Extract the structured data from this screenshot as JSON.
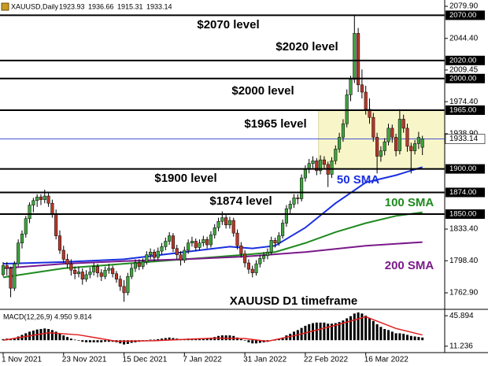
{
  "chart_data": {
    "type": "candlestick",
    "header": "XAUUSD,Daily",
    "up_color": "#3fa33f",
    "down_color": "#b5382b",
    "xlim": [
      -0.83,
      116.9
    ],
    "xticks": [
      {
        "value": 0,
        "label": "1 Nov 2021"
      },
      {
        "value": 16,
        "label": "23 Nov 2021"
      },
      {
        "value": 32,
        "label": "15 Dec 2021"
      },
      {
        "value": 48,
        "label": "7 Jan 2022"
      },
      {
        "value": 64,
        "label": "31 Jan 2022"
      },
      {
        "value": 80,
        "label": "22 Feb 2022"
      },
      {
        "value": 96,
        "label": "16 Mar 2022"
      }
    ],
    "ylim": [
      1745.5,
      2086.9
    ],
    "yticks": [
      {
        "value": 2079.9,
        "label": "2079.90"
      },
      {
        "value": 2044.4,
        "label": "2044.40"
      },
      {
        "value": 2009.45,
        "label": "2009.45"
      },
      {
        "value": 1974.4,
        "label": "1974.40"
      },
      {
        "value": 1938.9,
        "label": "1938.90"
      },
      {
        "value": 1833.4,
        "label": "1833.40"
      },
      {
        "value": 1798.4,
        "label": "1798.40"
      },
      {
        "value": 1762.9,
        "label": "1762.90"
      }
    ],
    "candles": [
      [
        1783,
        1797,
        1781,
        1793
      ],
      [
        1793,
        1797,
        1782,
        1790
      ],
      [
        1790,
        1792,
        1758,
        1768
      ],
      [
        1768,
        1798,
        1765,
        1795
      ],
      [
        1795,
        1822,
        1792,
        1818
      ],
      [
        1818,
        1832,
        1812,
        1828
      ],
      [
        1828,
        1848,
        1824,
        1845
      ],
      [
        1845,
        1863,
        1840,
        1860
      ],
      [
        1860,
        1868,
        1852,
        1865
      ],
      [
        1865,
        1872,
        1858,
        1869
      ],
      [
        1869,
        1872,
        1860,
        1866
      ],
      [
        1866,
        1877,
        1862,
        1870
      ],
      [
        1870,
        1873,
        1858,
        1862
      ],
      [
        1862,
        1866,
        1846,
        1850
      ],
      [
        1850,
        1855,
        1822,
        1826
      ],
      [
        1826,
        1832,
        1806,
        1810
      ],
      [
        1810,
        1815,
        1796,
        1800
      ],
      [
        1800,
        1806,
        1790,
        1795
      ],
      [
        1795,
        1800,
        1782,
        1788
      ],
      [
        1788,
        1792,
        1778,
        1784
      ],
      [
        1784,
        1792,
        1780,
        1786
      ],
      [
        1786,
        1790,
        1772,
        1778
      ],
      [
        1778,
        1788,
        1775,
        1783
      ],
      [
        1783,
        1791,
        1779,
        1786
      ],
      [
        1786,
        1796,
        1782,
        1792
      ],
      [
        1792,
        1795,
        1780,
        1785
      ],
      [
        1785,
        1789,
        1776,
        1781
      ],
      [
        1781,
        1792,
        1778,
        1788
      ],
      [
        1788,
        1795,
        1784,
        1790
      ],
      [
        1790,
        1793,
        1780,
        1784
      ],
      [
        1784,
        1787,
        1774,
        1778
      ],
      [
        1778,
        1782,
        1765,
        1770
      ],
      [
        1770,
        1777,
        1753,
        1763
      ],
      [
        1763,
        1785,
        1760,
        1781
      ],
      [
        1781,
        1795,
        1778,
        1790
      ],
      [
        1790,
        1800,
        1786,
        1796
      ],
      [
        1796,
        1800,
        1788,
        1792
      ],
      [
        1792,
        1801,
        1789,
        1797
      ],
      [
        1797,
        1809,
        1794,
        1805
      ],
      [
        1805,
        1812,
        1800,
        1808
      ],
      [
        1808,
        1811,
        1798,
        1802
      ],
      [
        1802,
        1813,
        1799,
        1809
      ],
      [
        1809,
        1818,
        1805,
        1814
      ],
      [
        1814,
        1824,
        1810,
        1820
      ],
      [
        1820,
        1830,
        1816,
        1826
      ],
      [
        1826,
        1829,
        1808,
        1812
      ],
      [
        1812,
        1816,
        1800,
        1805
      ],
      [
        1805,
        1809,
        1793,
        1799
      ],
      [
        1799,
        1814,
        1796,
        1810
      ],
      [
        1810,
        1822,
        1806,
        1818
      ],
      [
        1818,
        1825,
        1814,
        1820
      ],
      [
        1820,
        1823,
        1809,
        1813
      ],
      [
        1813,
        1822,
        1810,
        1818
      ],
      [
        1818,
        1826,
        1814,
        1822
      ],
      [
        1822,
        1825,
        1812,
        1816
      ],
      [
        1816,
        1831,
        1813,
        1827
      ],
      [
        1827,
        1839,
        1823,
        1835
      ],
      [
        1835,
        1846,
        1831,
        1842
      ],
      [
        1842,
        1853,
        1838,
        1846
      ],
      [
        1846,
        1849,
        1834,
        1838
      ],
      [
        1838,
        1847,
        1834,
        1843
      ],
      [
        1843,
        1846,
        1825,
        1829
      ],
      [
        1829,
        1833,
        1811,
        1815
      ],
      [
        1815,
        1819,
        1802,
        1806
      ],
      [
        1806,
        1810,
        1791,
        1796
      ],
      [
        1796,
        1800,
        1784,
        1789
      ],
      [
        1789,
        1793,
        1780,
        1785
      ],
      [
        1785,
        1799,
        1782,
        1795
      ],
      [
        1795,
        1805,
        1791,
        1801
      ],
      [
        1801,
        1808,
        1797,
        1804
      ],
      [
        1804,
        1812,
        1800,
        1808
      ],
      [
        1808,
        1825,
        1805,
        1821
      ],
      [
        1821,
        1824,
        1813,
        1818
      ],
      [
        1818,
        1830,
        1815,
        1826
      ],
      [
        1826,
        1844,
        1823,
        1840
      ],
      [
        1840,
        1860,
        1836,
        1856
      ],
      [
        1856,
        1865,
        1851,
        1861
      ],
      [
        1861,
        1872,
        1857,
        1868
      ],
      [
        1868,
        1872,
        1861,
        1867
      ],
      [
        1867,
        1894,
        1864,
        1890
      ],
      [
        1890,
        1904,
        1886,
        1900
      ],
      [
        1900,
        1911,
        1895,
        1906
      ],
      [
        1906,
        1914,
        1901,
        1909
      ],
      [
        1909,
        1912,
        1893,
        1898
      ],
      [
        1898,
        1915,
        1894,
        1910
      ],
      [
        1910,
        1914,
        1900,
        1905
      ],
      [
        1905,
        1908,
        1880,
        1894
      ],
      [
        1894,
        1913,
        1890,
        1909
      ],
      [
        1909,
        1926,
        1905,
        1922
      ],
      [
        1922,
        1940,
        1918,
        1935
      ],
      [
        1935,
        1955,
        1930,
        1950
      ],
      [
        1950,
        1988,
        1946,
        1982
      ],
      [
        1982,
        2003,
        1975,
        1999
      ],
      [
        1999,
        2070,
        1995,
        2050
      ],
      [
        2050,
        2056,
        1985,
        1993
      ],
      [
        1993,
        2010,
        1978,
        1985
      ],
      [
        1985,
        1992,
        1960,
        1966
      ],
      [
        1966,
        1978,
        1950,
        1957
      ],
      [
        1957,
        1962,
        1930,
        1935
      ],
      [
        1935,
        1940,
        1895,
        1914
      ],
      [
        1914,
        1925,
        1908,
        1920
      ],
      [
        1920,
        1934,
        1915,
        1930
      ],
      [
        1930,
        1950,
        1926,
        1945
      ],
      [
        1945,
        1949,
        1929,
        1935
      ],
      [
        1935,
        1939,
        1914,
        1920
      ],
      [
        1920,
        1966,
        1916,
        1955
      ],
      [
        1955,
        1960,
        1940,
        1945
      ],
      [
        1945,
        1950,
        1919,
        1925
      ],
      [
        1925,
        1929,
        1895,
        1920
      ],
      [
        1920,
        1932,
        1916,
        1928
      ],
      [
        1928,
        1941,
        1922,
        1935
      ],
      [
        1923.93,
        1936.66,
        1915.31,
        1933.14
      ]
    ],
    "zone": {
      "low": 1900,
      "high": 1965,
      "color": "#f8f5c9"
    },
    "levels": [
      {
        "value": 2070,
        "label": "$2070 level",
        "tag": "2070.00"
      },
      {
        "value": 2020,
        "label": "$2020 level",
        "tag": "2020.00"
      },
      {
        "value": 2000,
        "label": "$2000 level",
        "tag": "2000.00"
      },
      {
        "value": 1965,
        "label": "$1965 level",
        "tag": "1965.00"
      },
      {
        "value": 1900,
        "label": "$1900 level",
        "tag": "1900.00"
      },
      {
        "value": 1874,
        "label": "$1874 level",
        "tag": "1874.00"
      },
      {
        "value": 1850,
        "label": "",
        "tag": "1850.00"
      }
    ],
    "current": {
      "value": 1933.14,
      "color": "#2a3fd0"
    },
    "sma": [
      {
        "name": "50 SMA",
        "color": "#1a2fe0",
        "x": [
          0,
          16,
          32,
          48,
          60,
          66,
          72,
          80,
          88,
          96,
          104,
          111
        ],
        "values": [
          1795,
          1797,
          1800,
          1808,
          1814,
          1812,
          1815,
          1835,
          1862,
          1885,
          1893,
          1902
        ]
      },
      {
        "name": "100 SMA",
        "color": "#1f8a1f",
        "x": [
          0,
          16,
          32,
          48,
          64,
          72,
          80,
          88,
          96,
          104,
          111
        ],
        "values": [
          1780,
          1790,
          1795,
          1800,
          1805,
          1808,
          1818,
          1830,
          1840,
          1848,
          1852
        ]
      },
      {
        "name": "200 SMA",
        "color": "#7a1a8a",
        "x": [
          0,
          16,
          32,
          48,
          64,
          80,
          96,
          111
        ],
        "values": [
          1790,
          1795,
          1798,
          1800,
          1803,
          1808,
          1815,
          1819
        ]
      }
    ],
    "annotation": "XAUUSD D1 timeframe",
    "macd": {
      "title": "MACD(12,26,9) 4.950 9.814",
      "ylim": [
        -23.3,
        56.4
      ],
      "yticks": [
        45.894,
        {
          "value": -11.236,
          "label": "11.236"
        }
      ],
      "histogram": [
        2,
        3,
        2,
        4,
        7,
        10,
        13,
        16,
        18,
        20,
        21,
        22,
        21,
        19,
        16,
        12,
        9,
        6,
        3,
        1,
        -1,
        -3,
        -4,
        -4,
        -4,
        -4,
        -4,
        -3,
        -3,
        -3,
        -4,
        -6,
        -8,
        -7,
        -5,
        -4,
        -3,
        -2,
        0,
        1,
        1,
        2,
        3,
        4,
        5,
        4,
        3,
        2,
        2,
        3,
        3,
        3,
        3,
        3,
        3,
        4,
        6,
        8,
        9,
        9,
        9,
        8,
        5,
        2,
        -1,
        -4,
        -6,
        -6,
        -5,
        -4,
        -3,
        -1,
        0,
        2,
        5,
        9,
        12,
        16,
        19,
        23,
        27,
        30,
        32,
        33,
        33,
        33,
        31,
        31,
        32,
        34,
        37,
        41,
        45,
        50,
        52,
        50,
        46,
        41,
        36,
        30,
        25,
        21,
        19,
        16,
        13,
        13,
        12,
        10,
        8,
        7,
        6,
        4.95
      ],
      "signal": {
        "color": "#e02020",
        "x": [
          0,
          12,
          20,
          30,
          40,
          56,
          64,
          70,
          78,
          88,
          96,
          104,
          111
        ],
        "values": [
          0,
          14,
          10,
          -2,
          -1,
          4,
          3,
          -2,
          10,
          28,
          44,
          22,
          9.814
        ]
      }
    }
  }
}
